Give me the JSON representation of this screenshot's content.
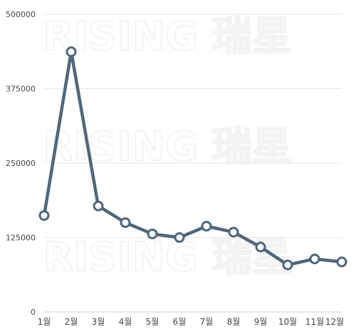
{
  "chart_data": {
    "type": "line",
    "categories": [
      "1월",
      "2월",
      "3월",
      "4월",
      "5월",
      "6월",
      "7월",
      "8월",
      "9월",
      "10월",
      "11월",
      "12월"
    ],
    "series": [
      {
        "values": [
          162000,
          437000,
          178000,
          150000,
          131000,
          125000,
          144000,
          134000,
          109000,
          79000,
          89000,
          84000
        ]
      }
    ],
    "yticks": [
      0,
      125000,
      250000,
      375000,
      500000
    ],
    "ytick_labels": [
      "0",
      "125000",
      "250000",
      "375000",
      "500000"
    ],
    "ylim": [
      0,
      500000
    ],
    "grid": true,
    "line_color": "#4f677d",
    "marker_fill": "#ffffff",
    "watermark": "RISING 瑞星"
  }
}
